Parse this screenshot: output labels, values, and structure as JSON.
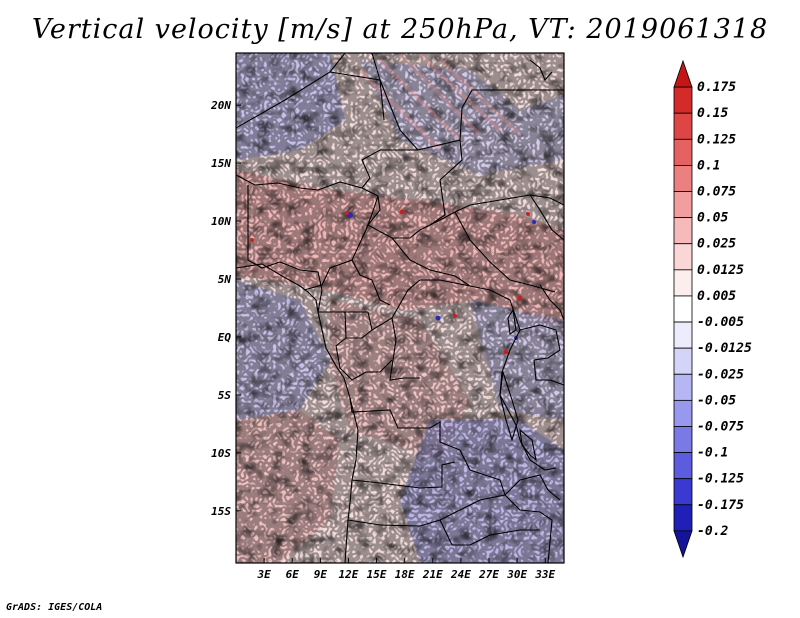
{
  "title": "Vertical velocity [m/s] at 250hPa, VT: 2019061318",
  "footer": "GrADS: IGES/COLA",
  "map": {
    "lat_range": [
      -19.5,
      24.5
    ],
    "lon_range": [
      0,
      35
    ],
    "lat_ticks": [
      "20N",
      "15N",
      "10N",
      "5N",
      "EQ",
      "5S",
      "10S",
      "15S"
    ],
    "lat_tick_values": [
      20,
      15,
      10,
      5,
      0,
      -5,
      -10,
      -15
    ],
    "lon_ticks": [
      "3E",
      "6E",
      "9E",
      "12E",
      "15E",
      "18E",
      "21E",
      "24E",
      "27E",
      "30E",
      "33E"
    ],
    "lon_tick_values": [
      3,
      6,
      9,
      12,
      15,
      18,
      21,
      24,
      27,
      30,
      33
    ]
  },
  "colorbar": {
    "labels": [
      "0.175",
      "0.15",
      "0.125",
      "0.1",
      "0.075",
      "0.05",
      "0.025",
      "0.0125",
      "0.005",
      "-0.005",
      "-0.0125",
      "-0.025",
      "-0.05",
      "-0.075",
      "-0.1",
      "-0.125",
      "-0.175",
      "-0.2"
    ],
    "colors": [
      "#c41616",
      "#d42a2a",
      "#de4646",
      "#e66262",
      "#ec8080",
      "#f29e9e",
      "#f6baba",
      "#fad6d6",
      "#fdeeee",
      "#ffffff",
      "#ececfc",
      "#d4d4f8",
      "#b6b6f4",
      "#9898ee",
      "#7a7ae6",
      "#5c5cde",
      "#3a3ad2",
      "#2020b8",
      "#14149a"
    ]
  }
}
